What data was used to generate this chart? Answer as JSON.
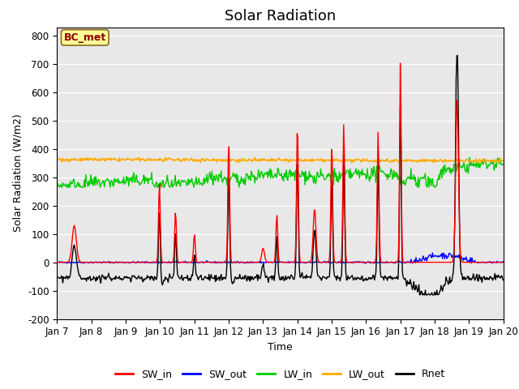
{
  "title": "Solar Radiation",
  "xlabel": "Time",
  "ylabel": "Solar Radiation (W/m2)",
  "annotation": "BC_met",
  "ylim": [
    -200,
    830
  ],
  "yticks": [
    -200,
    -100,
    0,
    100,
    200,
    300,
    400,
    500,
    600,
    700,
    800
  ],
  "x_start_day": 7,
  "x_end_day": 20,
  "x_tick_days": [
    7,
    8,
    9,
    10,
    11,
    12,
    13,
    14,
    15,
    16,
    17,
    18,
    19,
    20
  ],
  "colors": {
    "SW_in": "#ff0000",
    "SW_out": "#0000ff",
    "LW_in": "#00cc00",
    "LW_out": "#ffaa00",
    "Rnet": "#000000"
  },
  "bg_color": "#e8e8e8",
  "legend_items": [
    "SW_in",
    "SW_out",
    "LW_in",
    "LW_out",
    "Rnet"
  ],
  "title_fontsize": 13,
  "axis_label_fontsize": 9,
  "tick_fontsize": 8.5
}
